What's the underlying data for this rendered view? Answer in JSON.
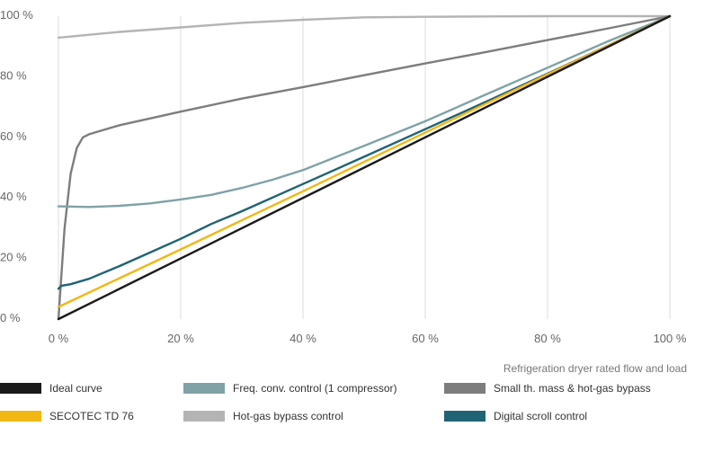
{
  "chart_data": {
    "type": "line",
    "title": "",
    "xlabel": "Refrigeration dryer rated flow and load",
    "ylabel": "",
    "xlim": [
      0,
      100
    ],
    "ylim": [
      0,
      100
    ],
    "grid": "vertical",
    "x_ticks": [
      "0 %",
      "20 %",
      "40 %",
      "60 %",
      "80 %",
      "100 %"
    ],
    "y_ticks": [
      "0 %",
      "20 %",
      "40 %",
      "60 %",
      "80 %",
      "100 %"
    ],
    "legend_position": "bottom",
    "series": [
      {
        "name": "Hot-gas bypass control",
        "color": "#b4b4b4",
        "points": [
          [
            0,
            92.9
          ],
          [
            10,
            94.8
          ],
          [
            20,
            96.3
          ],
          [
            30,
            97.8
          ],
          [
            40,
            98.8
          ],
          [
            50,
            99.6
          ],
          [
            60,
            99.8
          ],
          [
            70,
            99.9
          ],
          [
            80,
            100
          ],
          [
            90,
            100
          ],
          [
            100,
            100
          ]
        ]
      },
      {
        "name": "Small th. mass & hot-gas bypass",
        "color": "#7d7d7d",
        "points": [
          [
            0,
            0
          ],
          [
            1,
            30
          ],
          [
            2,
            48
          ],
          [
            3,
            56.5
          ],
          [
            4,
            60
          ],
          [
            5,
            61
          ],
          [
            10,
            64
          ],
          [
            20,
            68.5
          ],
          [
            30,
            72.8
          ],
          [
            40,
            76.6
          ],
          [
            50,
            80.5
          ],
          [
            60,
            84.4
          ],
          [
            70,
            88.2
          ],
          [
            80,
            92.1
          ],
          [
            90,
            96
          ],
          [
            100,
            100
          ]
        ]
      },
      {
        "name": "Freq. conv. control (1 compressor)",
        "color": "#7fa2a6",
        "points": [
          [
            0,
            37.2
          ],
          [
            5,
            37
          ],
          [
            10,
            37.4
          ],
          [
            15,
            38.2
          ],
          [
            20,
            39.5
          ],
          [
            25,
            41
          ],
          [
            30,
            43.3
          ],
          [
            35,
            46
          ],
          [
            40,
            49.2
          ],
          [
            45,
            53.2
          ],
          [
            50,
            57.2
          ],
          [
            60,
            65.3
          ],
          [
            70,
            74.2
          ],
          [
            80,
            83
          ],
          [
            90,
            91.8
          ],
          [
            100,
            100
          ]
        ]
      },
      {
        "name": "Digital scroll control",
        "color": "#1f6374",
        "points": [
          [
            0,
            10
          ],
          [
            0.5,
            11
          ],
          [
            2,
            11.5
          ],
          [
            5,
            13.3
          ],
          [
            10,
            17.5
          ],
          [
            15,
            22
          ],
          [
            20,
            26.5
          ],
          [
            25,
            31.4
          ],
          [
            30,
            35.6
          ],
          [
            40,
            44.6
          ],
          [
            50,
            53.6
          ],
          [
            60,
            62.7
          ],
          [
            70,
            71.8
          ],
          [
            80,
            81
          ],
          [
            90,
            90.4
          ],
          [
            100,
            100
          ]
        ]
      },
      {
        "name": "SECOTEC TD 76",
        "color": "#f1b715",
        "points": [
          [
            0,
            4
          ],
          [
            10,
            13.5
          ],
          [
            20,
            23
          ],
          [
            30,
            32.6
          ],
          [
            40,
            42.2
          ],
          [
            50,
            51.9
          ],
          [
            60,
            61.6
          ],
          [
            70,
            71.2
          ],
          [
            80,
            80.8
          ],
          [
            90,
            90.4
          ],
          [
            100,
            100
          ]
        ]
      },
      {
        "name": "Ideal curve",
        "color": "#1a1a1a",
        "points": [
          [
            0,
            0
          ],
          [
            100,
            100
          ]
        ]
      }
    ]
  },
  "legend": {
    "items": [
      {
        "label": "Ideal curve",
        "color": "#1a1a1a"
      },
      {
        "label": "Freq. conv. control (1 compressor)",
        "color": "#7fa2a6"
      },
      {
        "label": "Small th. mass & hot-gas bypass",
        "color": "#7d7d7d"
      },
      {
        "label": "SECOTEC TD 76",
        "color": "#f1b715"
      },
      {
        "label": "Hot-gas bypass control",
        "color": "#b4b4b4"
      },
      {
        "label": "Digital scroll control",
        "color": "#1f6374"
      }
    ]
  }
}
